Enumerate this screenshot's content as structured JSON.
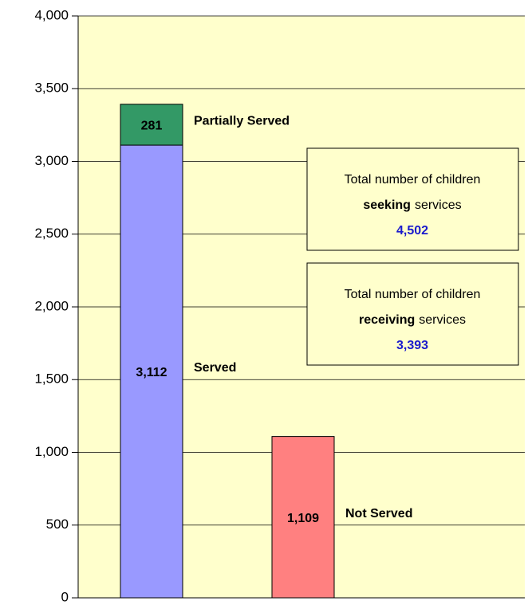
{
  "chart_data": {
    "type": "stacked-bar",
    "categories": [
      null,
      null
    ],
    "series": [
      {
        "name": "Served",
        "color": "#9999ff",
        "values": [
          3112,
          null
        ],
        "value_labels": [
          "3,112",
          null
        ]
      },
      {
        "name": "Partially Served",
        "color": "#339966",
        "values": [
          281,
          null
        ],
        "value_labels": [
          "281",
          null
        ]
      },
      {
        "name": "Not Served",
        "color": "#ff8080",
        "values": [
          null,
          1109
        ],
        "value_labels": [
          null,
          "1,109"
        ]
      }
    ],
    "ylim": [
      0,
      4000
    ],
    "yticks": [
      0,
      500,
      {
        "value": 1000,
        "label": "1,000"
      },
      {
        "value": 1500,
        "label": "1,500"
      },
      {
        "value": 2000,
        "label": "2,000"
      },
      {
        "value": 2500,
        "label": "2,500"
      },
      {
        "value": 3000,
        "label": "3,000"
      },
      {
        "value": 3500,
        "label": "3,500"
      },
      {
        "value": 4000,
        "label": "4,000"
      }
    ],
    "grid": true,
    "background": "#ffffcc",
    "annotations": [
      {
        "text": "Total number of children",
        "emphasis": "seeking",
        "suffix": "services",
        "figure": "4,502"
      },
      {
        "text": "Total number of children",
        "emphasis": "receiving",
        "suffix": "services",
        "figure": "3,393"
      }
    ]
  }
}
